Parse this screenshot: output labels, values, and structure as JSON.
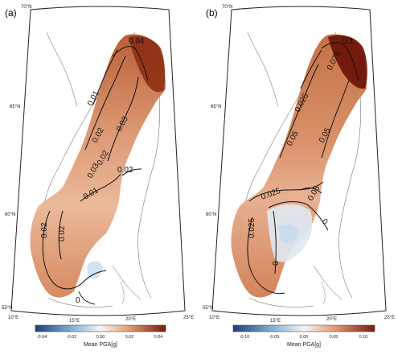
{
  "panels": [
    {
      "label": "(a)",
      "colorbar": {
        "title": "Mean PGA[g]",
        "ticks": [
          "-0.04",
          "-0.02",
          "0.00",
          "0.02",
          "0.04"
        ]
      },
      "lat_labels": [
        "70°N",
        "65°N",
        "60°N",
        "55°N"
      ],
      "lon_labels": [
        "10°E",
        "15°E",
        "20°E",
        "25°E"
      ],
      "contour_labels": [
        "0.04",
        "0.01",
        "0.02",
        "0.03",
        "0.02",
        "0.03",
        "0.02",
        "0.01",
        "0.02",
        "0.02",
        "0"
      ]
    },
    {
      "label": "(b)",
      "colorbar": {
        "title": "Mean PGA[g]",
        "ticks": [
          "-0.10",
          "-0.05",
          "0.00",
          "0.05",
          "0.10"
        ]
      },
      "lat_labels": [
        "70°N",
        "65°N",
        "60°N",
        "55°N"
      ],
      "lon_labels": [
        "10°E",
        "15°E",
        "20°E",
        "25°E"
      ],
      "contour_labels": [
        "0.1",
        "0.075",
        "0.025",
        "0.05",
        "0.05",
        "0.025",
        "0.05",
        "0",
        "0.025",
        "0"
      ]
    }
  ],
  "colors": {
    "dark_high": "#7a1a08",
    "mid_high": "#c46a3f",
    "light": "#f2d7c6",
    "zero": "#f5f5f5",
    "neg": "#c7dcee",
    "dark_low": "#1c3f7a"
  }
}
